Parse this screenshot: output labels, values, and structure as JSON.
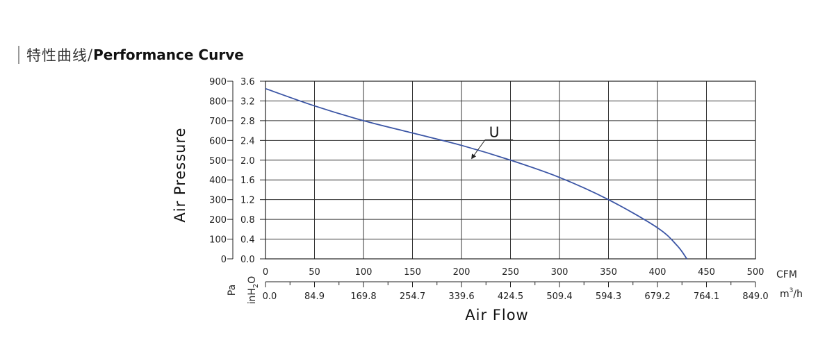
{
  "header": {
    "title_cn": "特性曲线",
    "separator": "/",
    "title_en": "Performance Curve"
  },
  "chart_data": {
    "type": "line",
    "xlabel": "Air Flow",
    "ylabel": "Air Pressure",
    "x_unit_top": "CFM",
    "x_unit_bottom_prefix": "m",
    "x_unit_bottom_sup": "3",
    "x_unit_bottom_suffix": "/h",
    "y_unit_outer": "Pa",
    "y_unit_inner_main": "inH",
    "y_unit_inner_sub": "2",
    "y_unit_inner_end": "O",
    "xlim": [
      0,
      500
    ],
    "ylim_inH2O": [
      0,
      3.6
    ],
    "ylim_Pa": [
      0,
      900
    ],
    "grid": true,
    "x_ticks_cfm": [
      "0",
      "50",
      "100",
      "150",
      "200",
      "250",
      "300",
      "350",
      "400",
      "450",
      "500"
    ],
    "x_ticks_m3h": [
      "0.0",
      "84.9",
      "169.8",
      "254.7",
      "339.6",
      "424.5",
      "509.4",
      "594.3",
      "679.2",
      "764.1",
      "849.0"
    ],
    "y_ticks_pa": [
      "0",
      "100",
      "200",
      "300",
      "400",
      "500",
      "600",
      "700",
      "800",
      "900"
    ],
    "y_ticks_inh2o": [
      "0.0",
      "0.4",
      "0.8",
      "1.2",
      "1.6",
      "2.0",
      "2.4",
      "2.8",
      "3.2",
      "3.6"
    ],
    "line_color": "#3b55a5",
    "series": [
      {
        "name": "U",
        "x": [
          0,
          50,
          100,
          150,
          200,
          250,
          300,
          350,
          400,
          420,
          430
        ],
        "y": [
          3.45,
          3.1,
          2.8,
          2.55,
          2.3,
          2.0,
          1.65,
          1.2,
          0.63,
          0.27,
          0.0
        ]
      }
    ],
    "annotation": {
      "label": "U",
      "x": 210,
      "y": 2.02
    }
  }
}
